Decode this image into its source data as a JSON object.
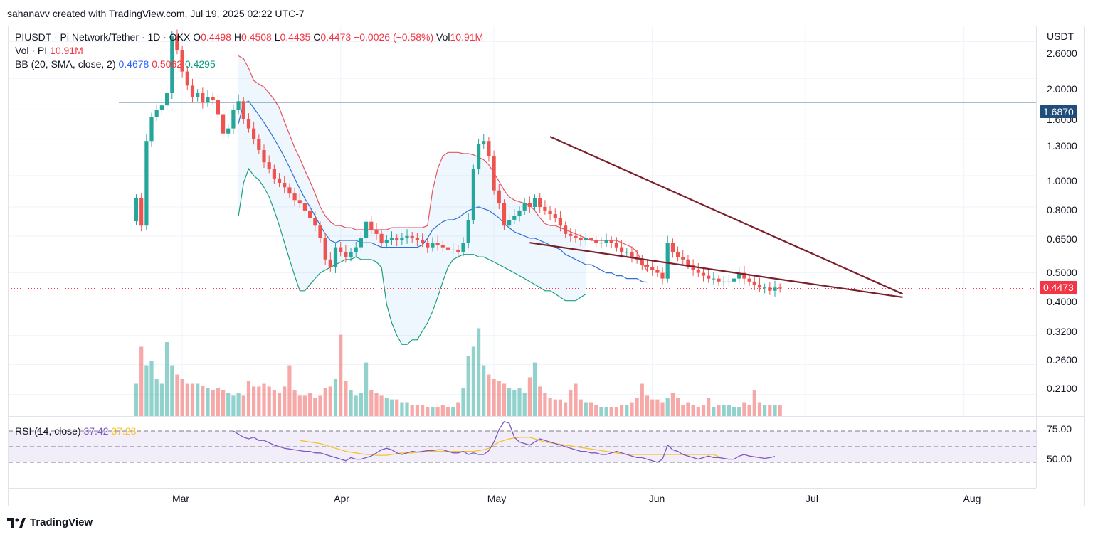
{
  "credit": "sahanavv created with TradingView.com, Jul 19, 2025 02:22 UTC-7",
  "brand": "TradingView",
  "legend": {
    "symbol": "PIUSDT · Pi Network/Tether · 1D · OKX",
    "o_label": "O",
    "o": "0.4498",
    "h_label": "H",
    "h": "0.4508",
    "l_label": "L",
    "l": "0.4435",
    "c_label": "C",
    "c": "0.4473",
    "change": "−0.0026 (−0.58%)",
    "vol_label": "Vol",
    "vol": "10.91M",
    "vol_row_label": "Vol · PI",
    "vol_row_value": "10.91M",
    "bb_label": "BB (20, SMA, close, 2)",
    "bb_basis": "0.4678",
    "bb_upper": "0.5062",
    "bb_lower": "0.4295",
    "rsi_label": "RSI (14, close)",
    "rsi": "37.42",
    "rsi_ma": "37.28"
  },
  "price_axis": {
    "currency": "USDT",
    "ticks": [
      "2.6000",
      "2.0000",
      "1.6000",
      "1.3000",
      "1.0000",
      "0.8000",
      "0.6500",
      "0.5000",
      "0.4000",
      "0.3200",
      "0.2600",
      "0.2100"
    ],
    "horizontal_line_label": "1.6870",
    "last_price_label": "0.4473"
  },
  "rsi_axis": {
    "ticks": [
      "75.00",
      "50.00"
    ]
  },
  "time_axis": {
    "ticks": [
      "Mar",
      "Apr",
      "May",
      "Jun",
      "Jul",
      "Aug"
    ]
  },
  "colors": {
    "up": "#26a69a",
    "down": "#ef5350",
    "bb_upper": "#e8535c",
    "bb_basis": "#2f6fd6",
    "bb_lower": "#1a9f7c",
    "trendline": "#7b1f2a",
    "hline": "#1e4e79",
    "rsi": "#7e57c2",
    "rsi_ma": "#f7c325"
  },
  "chart_data": {
    "type": "candlestick",
    "symbol": "PIUSDT",
    "timeframe": "1D",
    "y_scale": "log",
    "ylim": [
      0.18,
      2.9
    ],
    "x_range": [
      "2025-02-20",
      "2025-07-18"
    ],
    "start_date": "2025-02-20",
    "closes": [
      0.85,
      0.7,
      1.28,
      1.52,
      1.6,
      1.65,
      1.8,
      2.7,
      2.45,
      2.1,
      1.9,
      1.75,
      1.8,
      1.68,
      1.75,
      1.72,
      1.55,
      1.35,
      1.4,
      1.6,
      1.7,
      1.5,
      1.4,
      1.3,
      1.2,
      1.1,
      1.05,
      0.98,
      0.95,
      0.92,
      0.88,
      0.84,
      0.82,
      0.78,
      0.74,
      0.7,
      0.64,
      0.55,
      0.52,
      0.6,
      0.58,
      0.56,
      0.58,
      0.6,
      0.64,
      0.72,
      0.68,
      0.66,
      0.62,
      0.63,
      0.64,
      0.63,
      0.64,
      0.65,
      0.64,
      0.63,
      0.62,
      0.6,
      0.62,
      0.61,
      0.6,
      0.59,
      0.59,
      0.58,
      0.62,
      0.73,
      1.05,
      1.25,
      1.28,
      1.15,
      0.9,
      0.82,
      0.7,
      0.73,
      0.75,
      0.78,
      0.82,
      0.8,
      0.85,
      0.8,
      0.78,
      0.76,
      0.74,
      0.7,
      0.66,
      0.65,
      0.64,
      0.63,
      0.64,
      0.63,
      0.62,
      0.62,
      0.63,
      0.62,
      0.6,
      0.58,
      0.58,
      0.56,
      0.55,
      0.53,
      0.52,
      0.51,
      0.5,
      0.48,
      0.62,
      0.58,
      0.56,
      0.55,
      0.53,
      0.51,
      0.5,
      0.49,
      0.48,
      0.48,
      0.47,
      0.47,
      0.47,
      0.48,
      0.5,
      0.48,
      0.47,
      0.46,
      0.45,
      0.45,
      0.44,
      0.45,
      0.4473
    ],
    "bb_upper": {
      "start_index": 20,
      "values": [
        2.35,
        2.3,
        2.15,
        1.97,
        1.92,
        1.88,
        1.8,
        1.72,
        1.62,
        1.47,
        1.34,
        1.22,
        1.13,
        1.04,
        0.96,
        0.88,
        0.8,
        0.75,
        0.72,
        0.7,
        0.7,
        0.69,
        0.69,
        0.68,
        0.68,
        0.68,
        0.68,
        0.68,
        0.68,
        0.68,
        0.69,
        0.69,
        0.69,
        0.69,
        0.69,
        0.69,
        0.69,
        0.7,
        0.9,
        1.05,
        1.15,
        1.18,
        1.18,
        1.18,
        1.17,
        1.17,
        1.16,
        1.14,
        1.12,
        1.08,
        1.02,
        0.96,
        0.9,
        0.86,
        0.84,
        0.83,
        0.82,
        0.81,
        0.78,
        0.74,
        0.71,
        0.7,
        0.7,
        0.69,
        0.68,
        0.67,
        0.66,
        0.65,
        0.64,
        0.63,
        0.63,
        0.63,
        0.63,
        0.63,
        0.63,
        0.62,
        0.61,
        0.6,
        0.58,
        0.54,
        0.5062
      ]
    },
    "bb_basis": {
      "start_index": 20,
      "values": [
        1.45,
        1.68,
        1.7,
        1.62,
        1.54,
        1.46,
        1.38,
        1.3,
        1.22,
        1.14,
        1.06,
        0.98,
        0.91,
        0.85,
        0.8,
        0.75,
        0.7,
        0.66,
        0.63,
        0.62,
        0.63,
        0.63,
        0.63,
        0.63,
        0.62,
        0.62,
        0.62,
        0.61,
        0.6,
        0.6,
        0.6,
        0.6,
        0.6,
        0.6,
        0.6,
        0.6,
        0.61,
        0.64,
        0.68,
        0.7,
        0.72,
        0.73,
        0.73,
        0.74,
        0.76,
        0.78,
        0.79,
        0.8,
        0.79,
        0.78,
        0.76,
        0.74,
        0.71,
        0.69,
        0.67,
        0.66,
        0.65,
        0.64,
        0.64,
        0.63,
        0.62,
        0.61,
        0.6,
        0.59,
        0.57,
        0.56,
        0.55,
        0.54,
        0.53,
        0.53,
        0.52,
        0.51,
        0.5,
        0.5,
        0.49,
        0.49,
        0.48,
        0.48,
        0.48,
        0.47,
        0.4678
      ]
    },
    "bb_lower": {
      "start_index": 20,
      "values": [
        0.75,
        0.95,
        1.05,
        1.0,
        0.97,
        0.92,
        0.86,
        0.78,
        0.7,
        0.62,
        0.55,
        0.49,
        0.44,
        0.44,
        0.46,
        0.48,
        0.5,
        0.51,
        0.52,
        0.53,
        0.54,
        0.55,
        0.55,
        0.56,
        0.55,
        0.55,
        0.55,
        0.54,
        0.52,
        0.4,
        0.35,
        0.32,
        0.3,
        0.3,
        0.31,
        0.31,
        0.33,
        0.35,
        0.38,
        0.42,
        0.47,
        0.52,
        0.55,
        0.56,
        0.57,
        0.57,
        0.57,
        0.56,
        0.56,
        0.55,
        0.54,
        0.53,
        0.52,
        0.51,
        0.5,
        0.49,
        0.48,
        0.47,
        0.46,
        0.45,
        0.44,
        0.44,
        0.43,
        0.42,
        0.41,
        0.41,
        0.41,
        0.42,
        0.4295
      ]
    },
    "volume_scale_max": 1.0,
    "volumes": [
      0.35,
      0.75,
      0.55,
      0.6,
      0.4,
      0.35,
      0.8,
      0.55,
      0.45,
      0.4,
      0.35,
      0.35,
      0.35,
      0.33,
      0.3,
      0.28,
      0.3,
      0.28,
      0.25,
      0.22,
      0.25,
      0.22,
      0.38,
      0.32,
      0.32,
      0.35,
      0.32,
      0.28,
      0.25,
      0.32,
      0.55,
      0.28,
      0.22,
      0.22,
      0.25,
      0.2,
      0.22,
      0.3,
      0.32,
      0.4,
      0.88,
      0.38,
      0.28,
      0.22,
      0.25,
      0.58,
      0.28,
      0.25,
      0.22,
      0.2,
      0.18,
      0.18,
      0.15,
      0.15,
      0.12,
      0.12,
      0.12,
      0.1,
      0.1,
      0.1,
      0.12,
      0.1,
      0.1,
      0.15,
      0.3,
      0.65,
      0.75,
      0.95,
      0.55,
      0.45,
      0.4,
      0.38,
      0.35,
      0.3,
      0.28,
      0.3,
      0.25,
      0.42,
      0.58,
      0.32,
      0.25,
      0.2,
      0.18,
      0.18,
      0.15,
      0.28,
      0.35,
      0.18,
      0.15,
      0.15,
      0.12,
      0.1,
      0.1,
      0.1,
      0.1,
      0.12,
      0.12,
      0.15,
      0.2,
      0.35,
      0.22,
      0.18,
      0.18,
      0.15,
      0.2,
      0.25,
      0.2,
      0.12,
      0.15,
      0.12,
      0.1,
      0.12,
      0.2,
      0.1,
      0.12,
      0.12,
      0.12,
      0.1,
      0.1,
      0.15,
      0.12,
      0.28,
      0.15,
      0.12,
      0.12,
      0.12,
      0.12,
      0.1,
      0.08
    ],
    "rsi_ylim": [
      0,
      100
    ],
    "rsi_levels": [
      70,
      50,
      30
    ],
    "rsi": {
      "start_index": 19,
      "values": [
        70,
        66,
        62,
        60,
        62,
        58,
        58,
        55,
        52,
        50,
        48,
        47,
        46,
        45,
        44,
        44,
        42,
        42,
        40,
        38,
        36,
        34,
        32,
        36,
        34,
        34,
        36,
        38,
        42,
        46,
        48,
        46,
        42,
        40,
        42,
        44,
        43,
        44,
        45,
        45,
        46,
        46,
        44,
        42,
        42,
        44,
        40,
        42,
        40,
        40,
        45,
        56,
        72,
        82,
        80,
        62,
        56,
        54,
        52,
        56,
        60,
        58,
        56,
        54,
        52,
        50,
        48,
        46,
        44,
        44,
        42,
        42,
        40,
        40,
        42,
        44,
        42,
        40,
        38,
        36,
        36,
        34,
        32,
        30,
        34,
        52,
        46,
        44,
        40,
        38,
        36,
        34,
        36,
        38,
        36,
        36,
        35,
        34,
        34,
        38,
        40,
        38,
        37,
        36,
        35,
        36,
        37.42
      ]
    },
    "rsi_ma": {
      "start_index": 32,
      "values": [
        58,
        57,
        56,
        55,
        54,
        52,
        50,
        48,
        46,
        44,
        43,
        42,
        41,
        40,
        40,
        39,
        39,
        39,
        40,
        41,
        42,
        42,
        42,
        43,
        43,
        44,
        44,
        44,
        44,
        44,
        44,
        44,
        44,
        44,
        44,
        45,
        46,
        48,
        52,
        56,
        58,
        60,
        61,
        62,
        62,
        62,
        60,
        58,
        56,
        55,
        54,
        53,
        52,
        51,
        50,
        49,
        48,
        47,
        46,
        45,
        44,
        43,
        42,
        41,
        40,
        40,
        40,
        40,
        40,
        40,
        40,
        40,
        40,
        40,
        40,
        40,
        40,
        40,
        40,
        40,
        40,
        40,
        37.28
      ]
    },
    "horizontal_line": 1.687,
    "trendlines": [
      {
        "from": {
          "date": "2025-05-12",
          "price": 1.32
        },
        "to": {
          "date": "2025-07-20",
          "price": 0.43
        }
      },
      {
        "from": {
          "date": "2025-05-08",
          "price": 0.62
        },
        "to": {
          "date": "2025-07-20",
          "price": 0.42
        }
      }
    ]
  }
}
